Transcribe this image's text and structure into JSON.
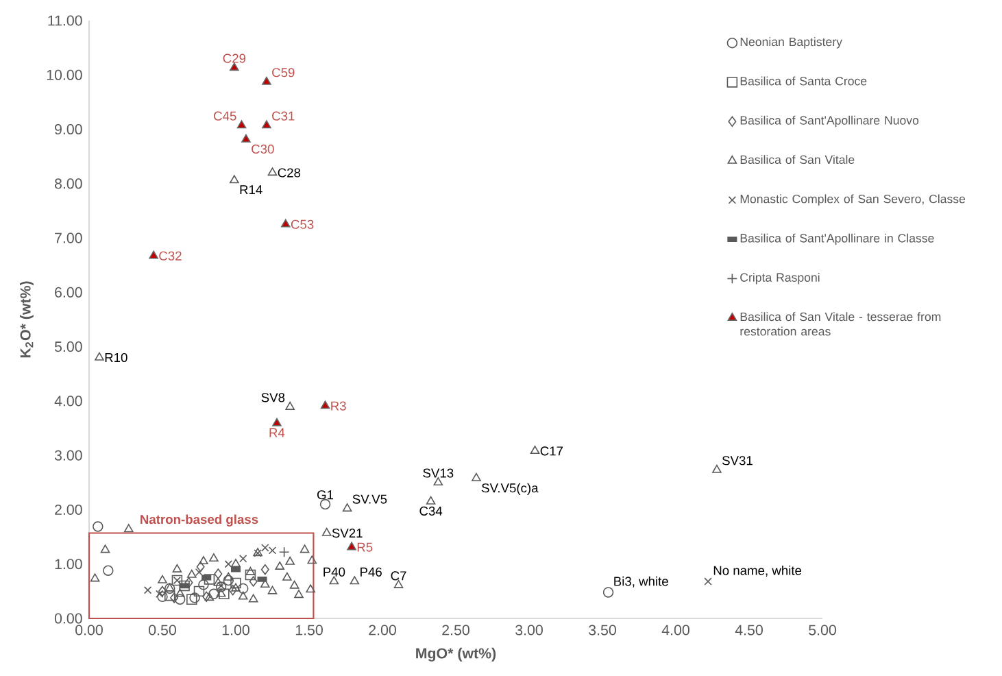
{
  "chart_data": {
    "type": "scatter",
    "xlabel": "MgO* (wt%)",
    "ylabel": "K$_{2}$O* (wt%)",
    "color": "#595959",
    "legend": "right",
    "grid": false,
    "xlim": [
      0,
      5
    ],
    "ylim": [
      0,
      11
    ],
    "xticks": [
      {
        "value": 0,
        "label": "0.00"
      },
      {
        "value": 0.5,
        "label": "0.50"
      },
      {
        "value": 1,
        "label": "1.00"
      },
      {
        "value": 1.5,
        "label": "1.50"
      },
      {
        "value": 2,
        "label": "2.00"
      },
      {
        "value": 2.5,
        "label": "2.50"
      },
      {
        "value": 3,
        "label": "3.00"
      },
      {
        "value": 3.5,
        "label": "3.50"
      },
      {
        "value": 4,
        "label": "4.00"
      },
      {
        "value": 4.5,
        "label": "4.50"
      },
      {
        "value": 5,
        "label": "5.00"
      }
    ],
    "yticks": [
      {
        "value": 0,
        "label": "0.00"
      },
      {
        "value": 1,
        "label": "1.00"
      },
      {
        "value": 2,
        "label": "2.00"
      },
      {
        "value": 3,
        "label": "3.00"
      },
      {
        "value": 4,
        "label": "4.00"
      },
      {
        "value": 5,
        "label": "5.00"
      },
      {
        "value": 6,
        "label": "6.00"
      },
      {
        "value": 7,
        "label": "7.00"
      },
      {
        "value": 8,
        "label": "8.00"
      },
      {
        "value": 9,
        "label": "9.00"
      },
      {
        "value": 10,
        "label": "10.00"
      },
      {
        "value": 11,
        "label": "11.00"
      }
    ],
    "series": [
      {
        "name": "Neonian Baptistery",
        "marker": "circle",
        "x": [
          0.06,
          0.13,
          1.61,
          3.54,
          0.5,
          0.55,
          0.62,
          0.78,
          0.85,
          0.95,
          1.05,
          0.72,
          0.9
        ],
        "values": [
          1.69,
          0.88,
          2.1,
          0.48,
          0.4,
          0.55,
          0.35,
          0.62,
          0.45,
          0.7,
          0.55,
          0.38,
          0.58
        ]
      },
      {
        "name": "Basilica of Santa Croce",
        "marker": "square",
        "x": [
          0.55,
          0.65,
          0.75,
          0.82,
          0.92,
          1.0,
          1.1,
          0.7,
          0.6
        ],
        "values": [
          0.42,
          0.6,
          0.5,
          0.72,
          0.45,
          0.65,
          0.8,
          0.35,
          0.7
        ]
      },
      {
        "name": "Basilica of Sant'Apollinare Nuovo",
        "marker": "diamond",
        "x": [
          0.5,
          0.58,
          0.68,
          0.8,
          0.88,
          0.98,
          1.12,
          1.2,
          0.76
        ],
        "values": [
          0.5,
          0.38,
          0.66,
          0.4,
          0.82,
          0.52,
          0.68,
          0.9,
          0.95
        ]
      },
      {
        "name": "Basilica of San Vitale",
        "marker": "triangle",
        "x": [
          0.99,
          1.25,
          0.07,
          1.37,
          1.76,
          1.62,
          2.38,
          2.64,
          2.33,
          3.04,
          4.28,
          1.67,
          1.81,
          2.11,
          0.27,
          0.11,
          0.04,
          1.51,
          1.52,
          1.47,
          1.37,
          1.43,
          0.55,
          0.62,
          0.7,
          0.78,
          0.85,
          0.9,
          0.95,
          1.0,
          1.05,
          1.1,
          1.15,
          1.2,
          1.25,
          1.3,
          1.35,
          1.4,
          0.82,
          0.6,
          0.5,
          1.0,
          1.12,
          0.88
        ],
        "values": [
          8.06,
          8.2,
          4.8,
          3.89,
          2.02,
          1.57,
          2.5,
          2.58,
          2.15,
          3.08,
          2.73,
          0.68,
          0.68,
          0.61,
          1.64,
          1.26,
          0.73,
          0.53,
          1.06,
          1.26,
          1.04,
          0.43,
          0.55,
          0.45,
          0.8,
          1.05,
          1.1,
          0.45,
          0.75,
          0.55,
          0.4,
          0.85,
          1.2,
          0.62,
          0.5,
          0.95,
          0.75,
          0.6,
          0.38,
          0.9,
          0.7,
          1.0,
          0.35,
          0.65
        ]
      },
      {
        "name": "Monastic Complex of San Severo, Classe",
        "marker": "cross",
        "x": [
          4.22,
          0.4,
          0.48,
          0.6,
          0.75,
          0.9,
          1.05,
          1.15,
          1.2,
          1.25,
          0.95
        ],
        "values": [
          0.68,
          0.52,
          0.45,
          0.7,
          0.85,
          0.6,
          1.1,
          1.2,
          1.3,
          1.25,
          1.0
        ]
      },
      {
        "name": "Basilica of Sant'Apollinare in Classe",
        "x": [
          0.65,
          0.8,
          1.0,
          1.18
        ],
        "values": [
          0.6,
          0.75,
          0.9,
          0.72
        ]
      },
      {
        "name": "Cripta Rasponi",
        "marker": "plus",
        "x": [
          1.33
        ],
        "values": [
          1.22
        ]
      },
      {
        "name": "Basilica of San Vitale - tesserae from restoration areas",
        "marker": "triangle",
        "color": "#c00000",
        "x": [
          0.99,
          1.21,
          1.04,
          1.21,
          1.07,
          1.34,
          0.44,
          1.61,
          1.28,
          1.79
        ],
        "values": [
          10.13,
          9.87,
          9.07,
          9.07,
          8.81,
          7.25,
          6.67,
          3.91,
          3.59,
          1.31
        ]
      }
    ],
    "annotations": [
      {
        "text": "C29",
        "x": 0.99,
        "y": 10.13
      },
      {
        "text": "C59",
        "x": 1.21,
        "y": 9.87
      },
      {
        "text": "C45",
        "x": 1.04,
        "y": 9.07
      },
      {
        "text": "C31",
        "x": 1.21,
        "y": 9.07
      },
      {
        "text": "C30",
        "x": 1.07,
        "y": 8.81
      },
      {
        "text": "C28",
        "x": 1.25,
        "y": 8.2
      },
      {
        "text": "R14",
        "x": 0.99,
        "y": 8.06
      },
      {
        "text": "C53",
        "x": 1.34,
        "y": 7.25
      },
      {
        "text": "C32",
        "x": 0.44,
        "y": 6.67
      },
      {
        "text": "R10",
        "x": 0.07,
        "y": 4.8
      },
      {
        "text": "SV8",
        "x": 1.37,
        "y": 3.89
      },
      {
        "text": "R3",
        "x": 1.61,
        "y": 3.91
      },
      {
        "text": "R4",
        "x": 1.28,
        "y": 3.59
      },
      {
        "text": "SV.V5",
        "x": 1.76,
        "y": 2.02
      },
      {
        "text": "G1",
        "x": 1.61,
        "y": 2.1
      },
      {
        "text": "SV13",
        "x": 2.38,
        "y": 2.5
      },
      {
        "text": "SV.V5(c)a",
        "x": 2.64,
        "y": 2.58
      },
      {
        "text": "C34",
        "x": 2.33,
        "y": 2.15
      },
      {
        "text": "C17",
        "x": 3.04,
        "y": 3.08
      },
      {
        "text": "SV31",
        "x": 4.28,
        "y": 2.73
      },
      {
        "text": "SV21",
        "x": 1.62,
        "y": 1.57
      },
      {
        "text": "R5",
        "x": 1.79,
        "y": 1.31
      },
      {
        "text": "P40",
        "x": 1.67,
        "y": 0.68
      },
      {
        "text": "P46",
        "x": 1.81,
        "y": 0.68
      },
      {
        "text": "C7",
        "x": 2.11,
        "y": 0.61
      },
      {
        "text": "Bi3, white",
        "x": 3.54,
        "y": 0.48
      },
      {
        "text": "No name, white",
        "x": 4.22,
        "y": 0.68
      },
      "Natron-based glass"
    ]
  }
}
